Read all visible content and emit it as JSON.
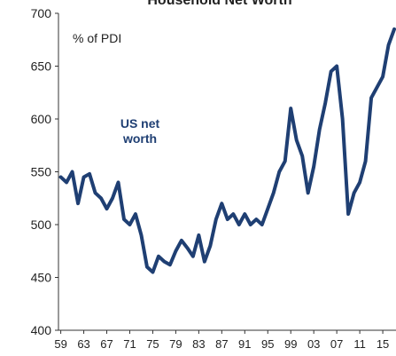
{
  "chart_data": {
    "type": "line",
    "title": "Household Net Worth",
    "annotation": "% of PDI",
    "series_label": [
      "US net",
      "worth"
    ],
    "x": [
      1959,
      1960,
      1961,
      1962,
      1963,
      1964,
      1965,
      1966,
      1967,
      1968,
      1969,
      1970,
      1971,
      1972,
      1973,
      1974,
      1975,
      1976,
      1977,
      1978,
      1979,
      1980,
      1981,
      1982,
      1983,
      1984,
      1985,
      1986,
      1987,
      1988,
      1989,
      1990,
      1991,
      1992,
      1993,
      1994,
      1995,
      1996,
      1997,
      1998,
      1999,
      2000,
      2001,
      2002,
      2003,
      2004,
      2005,
      2006,
      2007,
      2008,
      2009,
      2010,
      2011,
      2012,
      2013,
      2014,
      2015,
      2016,
      2017
    ],
    "series": [
      {
        "name": "US net worth",
        "color": "#1f3f73",
        "values": [
          545,
          540,
          550,
          520,
          545,
          548,
          530,
          525,
          515,
          525,
          540,
          505,
          500,
          510,
          490,
          460,
          455,
          470,
          465,
          462,
          475,
          485,
          478,
          470,
          490,
          465,
          480,
          505,
          520,
          505,
          510,
          500,
          510,
          500,
          505,
          500,
          515,
          530,
          550,
          560,
          610,
          580,
          565,
          530,
          555,
          590,
          615,
          645,
          650,
          600,
          510,
          530,
          540,
          560,
          620,
          630,
          640,
          670,
          685
        ]
      }
    ],
    "xlim": [
      1958.6,
      2017.3
    ],
    "xticks": [
      {
        "value": 1959,
        "label": "59"
      },
      {
        "value": 1963,
        "label": "63"
      },
      {
        "value": 1967,
        "label": "67"
      },
      {
        "value": 1971,
        "label": "71"
      },
      {
        "value": 1975,
        "label": "75"
      },
      {
        "value": 1979,
        "label": "79"
      },
      {
        "value": 1983,
        "label": "83"
      },
      {
        "value": 1987,
        "label": "87"
      },
      {
        "value": 1991,
        "label": "91"
      },
      {
        "value": 1995,
        "label": "95"
      },
      {
        "value": 1999,
        "label": "99"
      },
      {
        "value": 2003,
        "label": "03"
      },
      {
        "value": 2007,
        "label": "07"
      },
      {
        "value": 2011,
        "label": "11"
      },
      {
        "value": 2015,
        "label": "15"
      }
    ],
    "ylim": [
      400,
      700
    ],
    "yticks": [
      400,
      450,
      500,
      550,
      600,
      650,
      700
    ]
  }
}
